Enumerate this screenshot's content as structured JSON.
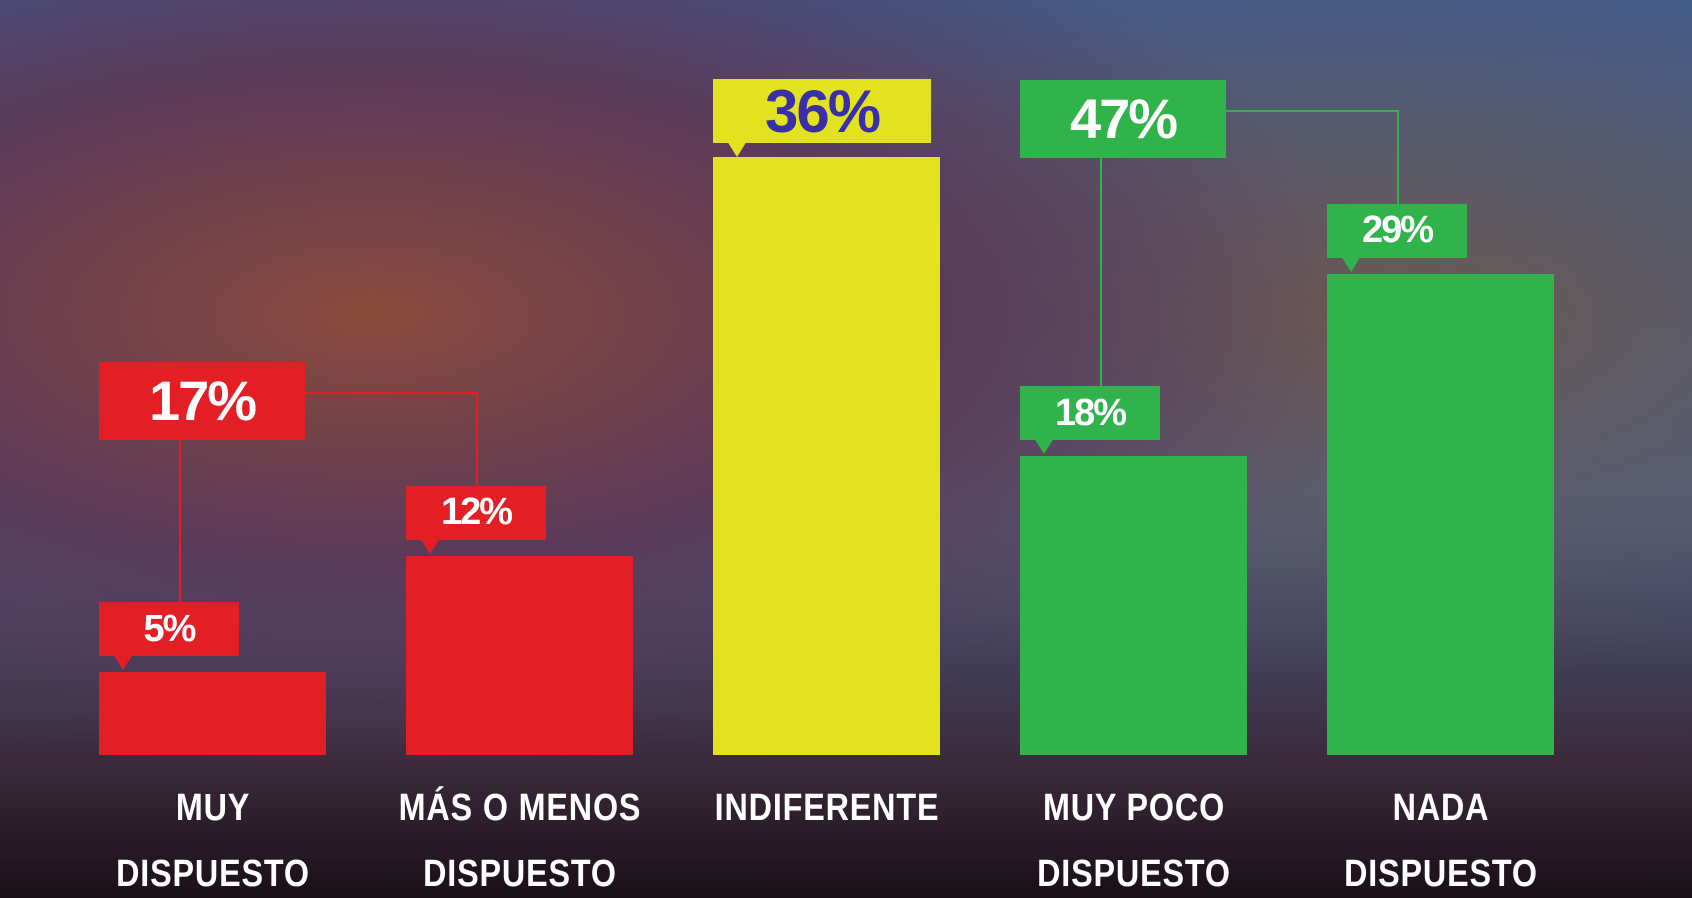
{
  "chart_data": {
    "type": "bar",
    "categories": [
      "MUY DISPUESTO",
      "MÁS O MENOS DISPUESTO",
      "INDIFERENTE",
      "MUY POCO DISPUESTO",
      "NADA DISPUESTO"
    ],
    "values": [
      5,
      12,
      36,
      18,
      29
    ],
    "value_labels": [
      "5%",
      "12%",
      "36%",
      "18%",
      "29%"
    ],
    "colors": [
      "#e31e24",
      "#e31e24",
      "#e2e21e",
      "#2fb34a",
      "#2fb34a"
    ],
    "group_labels": [
      {
        "label": "17%",
        "color": "#e31e24"
      },
      {
        "label": "47%",
        "color": "#2fb34a"
      }
    ]
  }
}
